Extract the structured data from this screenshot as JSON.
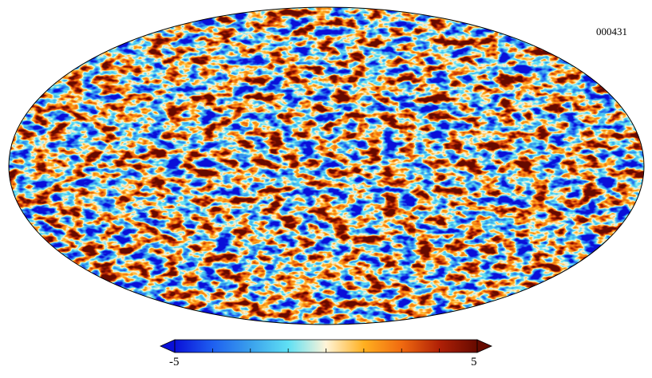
{
  "map": {
    "projection": "mollweide",
    "id_label": "000431"
  },
  "colorbar": {
    "min_label": "-5",
    "max_label": "5",
    "min": -5,
    "max": 5,
    "stops": [
      "#0a10d8",
      "#1e5ff0",
      "#3aa0ec",
      "#5fe0f4",
      "#fff4d8",
      "#ffb020",
      "#f06a10",
      "#b02006",
      "#660a00"
    ]
  }
}
